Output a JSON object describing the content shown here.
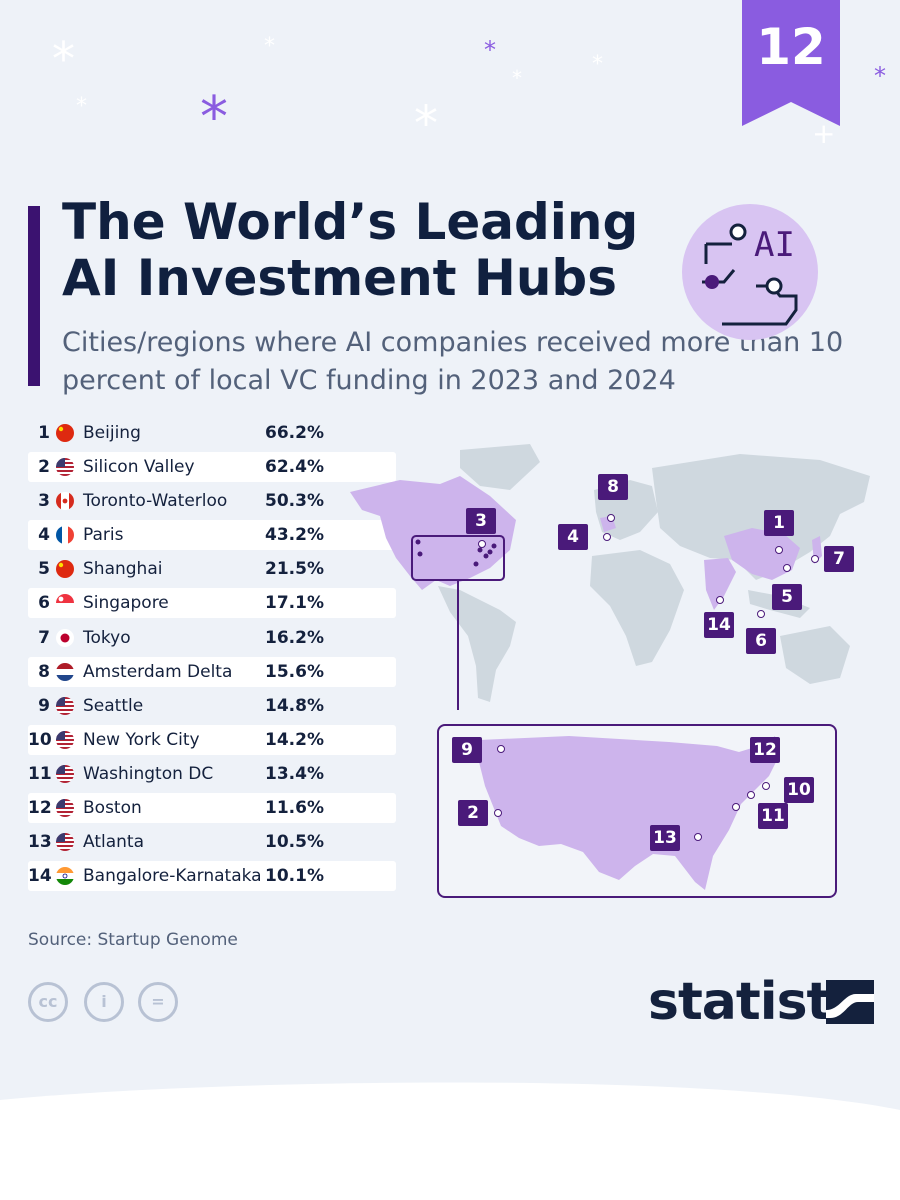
{
  "badge": "12",
  "title": "The World’s Leading AI Investment Hubs",
  "subtitle": "Cities/regions where AI companies received more than 10 percent of local VC funding in 2023 and 2024",
  "icon_text": "AI",
  "source": "Source: Startup Genome",
  "logo": "statista",
  "colors": {
    "accent": "#4a1a7a",
    "highlight": "#cdb4ec",
    "land": "#cfd8df",
    "title": "#10203f"
  },
  "rows": [
    {
      "rank": "1",
      "flag": "cn",
      "city": "Beijing",
      "value": "66.2%"
    },
    {
      "rank": "2",
      "flag": "us",
      "city": "Silicon Valley",
      "value": "62.4%"
    },
    {
      "rank": "3",
      "flag": "ca",
      "city": "Toronto-Waterloo",
      "value": "50.3%"
    },
    {
      "rank": "4",
      "flag": "fr",
      "city": "Paris",
      "value": "43.2%"
    },
    {
      "rank": "5",
      "flag": "cn",
      "city": "Shanghai",
      "value": "21.5%"
    },
    {
      "rank": "6",
      "flag": "sg",
      "city": "Singapore",
      "value": "17.1%"
    },
    {
      "rank": "7",
      "flag": "jp",
      "city": "Tokyo",
      "value": "16.2%"
    },
    {
      "rank": "8",
      "flag": "nl",
      "city": "Amsterdam Delta",
      "value": "15.6%"
    },
    {
      "rank": "9",
      "flag": "us",
      "city": "Seattle",
      "value": "14.8%"
    },
    {
      "rank": "10",
      "flag": "us",
      "city": "New York City",
      "value": "14.2%"
    },
    {
      "rank": "11",
      "flag": "us",
      "city": "Washington DC",
      "value": "13.4%"
    },
    {
      "rank": "12",
      "flag": "us",
      "city": "Boston",
      "value": "11.6%"
    },
    {
      "rank": "13",
      "flag": "us",
      "city": "Atlanta",
      "value": "10.5%"
    },
    {
      "rank": "14",
      "flag": "in",
      "city": "Bangalore-Karnataka",
      "value": "10.1%"
    }
  ],
  "world_markers": [
    "1",
    "3",
    "4",
    "5",
    "6",
    "7",
    "8",
    "14"
  ],
  "us_markers": [
    "9",
    "12",
    "10",
    "2",
    "11",
    "13"
  ]
}
